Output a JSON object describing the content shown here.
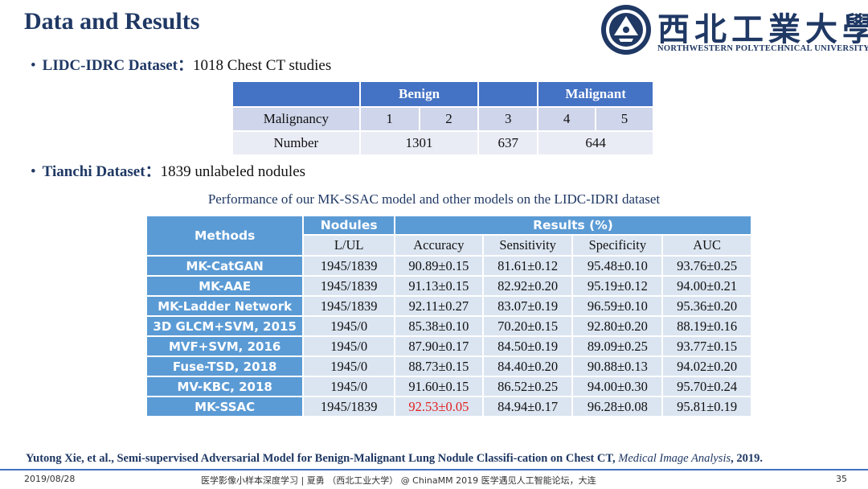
{
  "title": "Data and Results",
  "logo": {
    "university_cn": "西北工業大學",
    "university_en": "NORTHWESTERN POLYTECHNICAL UNIVERSITY",
    "primary_color": "#1f3864"
  },
  "bullets": [
    {
      "label": "LIDC-IDRC Dataset：",
      "text": "1018 Chest CT studies"
    },
    {
      "label": "Tianchi Dataset：",
      "text": "1839 unlabeled nodules"
    }
  ],
  "lidc_table": {
    "group_headers": [
      "Benign",
      "",
      "Malignant"
    ],
    "malignancy_label": "Malignancy",
    "malignancy_levels": [
      "1",
      "2",
      "3",
      "4",
      "5"
    ],
    "number_label": "Number",
    "numbers": [
      "1301",
      "637",
      "644"
    ]
  },
  "results": {
    "caption": "Performance of our MK-SSAC model and other models on the LIDC-IDRI dataset",
    "header": {
      "methods": "Methods",
      "nodules": "Nodules",
      "results": "Results (%)"
    },
    "subheaders": [
      "L/UL",
      "Accuracy",
      "Sensitivity",
      "Specificity",
      "AUC"
    ],
    "rows": [
      {
        "method": "MK-CatGAN",
        "lul": "1945/1839",
        "accuracy": "90.89±0.15",
        "sensitivity": "81.61±0.12",
        "specificity": "95.48±0.10",
        "auc": "93.76±0.25"
      },
      {
        "method": "MK-AAE",
        "lul": "1945/1839",
        "accuracy": "91.13±0.15",
        "sensitivity": "82.92±0.20",
        "specificity": "95.19±0.12",
        "auc": "94.00±0.21"
      },
      {
        "method": "MK-Ladder Network",
        "lul": "1945/1839",
        "accuracy": "92.11±0.27",
        "sensitivity": "83.07±0.19",
        "specificity": "96.59±0.10",
        "auc": "95.36±0.20"
      },
      {
        "method": "3D GLCM+SVM, 2015",
        "lul": "1945/0",
        "accuracy": "85.38±0.10",
        "sensitivity": "70.20±0.15",
        "specificity": "92.80±0.20",
        "auc": "88.19±0.16"
      },
      {
        "method": "MVF+SVM, 2016",
        "lul": "1945/0",
        "accuracy": "87.90±0.17",
        "sensitivity": "84.50±0.19",
        "specificity": "89.09±0.25",
        "auc": "93.77±0.15"
      },
      {
        "method": "Fuse-TSD, 2018",
        "lul": "1945/0",
        "accuracy": "88.73±0.15",
        "sensitivity": "84.40±0.20",
        "specificity": "90.88±0.13",
        "auc": "94.02±0.20"
      },
      {
        "method": "MV-KBC, 2018",
        "lul": "1945/0",
        "accuracy": "91.60±0.15",
        "sensitivity": "86.52±0.25",
        "specificity": "94.00±0.30",
        "auc": "95.70±0.24"
      },
      {
        "method": "MK-SSAC",
        "lul": "1945/1839",
        "accuracy": "92.53±0.05",
        "sensitivity": "84.94±0.17",
        "specificity": "96.28±0.08",
        "auc": "95.81±0.19"
      }
    ],
    "highlight_color": "#e02020"
  },
  "reference": {
    "text": "Yutong Xie, et al., Semi-supervised Adversarial Model for Benign-Malignant Lung Nodule Classifi-cation on Chest CT, ",
    "journal": "Medical Image Analysis",
    "year": ", 2019."
  },
  "footer": {
    "date": "2019/08/28",
    "center": "医学影像小样本深度学习 | 夏勇 （西北工业大学）  @ ChinaMM 2019 医学遇见人工智能论坛，大连",
    "page": "35"
  }
}
